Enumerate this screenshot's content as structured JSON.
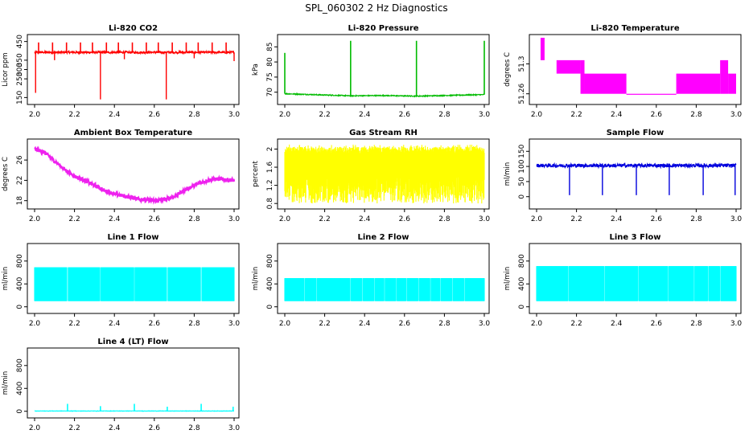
{
  "figure_title": "SPL_060302  2 Hz Diagnostics",
  "chart_data": [
    {
      "id": "co2",
      "type": "line",
      "title": "Li-820 CO2",
      "ylabel": "Licor ppm",
      "color": "#ff0000",
      "xlim": [
        2.0,
        3.0
      ],
      "ylim": [
        130,
        470
      ],
      "yticks": [
        150,
        250,
        300,
        350,
        450
      ],
      "x_ticks": [
        "2.0",
        "2.2",
        "2.4",
        "2.6",
        "2.8",
        "3.0"
      ],
      "series": [
        {
          "name": "CO2",
          "baseline": [
            [
              2.0,
              392
            ],
            [
              3.0,
              392
            ]
          ],
          "noise": 6,
          "spikes_up": [
            [
              2.02,
              445
            ],
            [
              2.09,
              445
            ],
            [
              2.16,
              445
            ],
            [
              2.23,
              445
            ],
            [
              2.29,
              445
            ],
            [
              2.36,
              445
            ],
            [
              2.42,
              445
            ],
            [
              2.49,
              445
            ],
            [
              2.56,
              445
            ],
            [
              2.62,
              445
            ],
            [
              2.69,
              445
            ],
            [
              2.76,
              445
            ],
            [
              2.82,
              445
            ],
            [
              2.89,
              445
            ],
            [
              2.96,
              445
            ]
          ],
          "spikes_down": [
            [
              2.005,
              175
            ],
            [
              2.33,
              140
            ],
            [
              2.66,
              140
            ],
            [
              3.0,
              345
            ],
            [
              2.1,
              350
            ],
            [
              2.45,
              355
            ],
            [
              2.8,
              360
            ]
          ]
        }
      ]
    },
    {
      "id": "pressure",
      "type": "line",
      "title": "Li-820 Pressure",
      "ylabel": "kPa",
      "color": "#00bb00",
      "xlim": [
        2.0,
        3.0
      ],
      "ylim": [
        67,
        88
      ],
      "yticks": [
        70,
        75,
        80,
        85
      ],
      "x_ticks": [
        "2.0",
        "2.2",
        "2.4",
        "2.6",
        "2.8",
        "3.0"
      ],
      "series": [
        {
          "name": "Pressure",
          "baseline": [
            [
              2.0,
              69.5
            ],
            [
              2.33,
              68.8
            ],
            [
              2.5,
              68.9
            ],
            [
              2.66,
              68.7
            ],
            [
              3.0,
              69.2
            ]
          ],
          "noise": 0.15,
          "spikes_up": [
            [
              2.0,
              83
            ],
            [
              2.33,
              87
            ],
            [
              2.66,
              87
            ],
            [
              3.0,
              87
            ]
          ],
          "spikes_down": []
        }
      ]
    },
    {
      "id": "licor_temp",
      "type": "step",
      "title": "Li-820 Temperature",
      "ylabel": "degrees C",
      "color": "#ff00ff",
      "xlim": [
        2.0,
        3.0
      ],
      "ylim": [
        51.25,
        51.335
      ],
      "yticks": [
        51.26,
        51.3
      ],
      "x_ticks": [
        "2.0",
        "2.2",
        "2.4",
        "2.6",
        "2.8",
        "3.0"
      ],
      "series": [
        {
          "name": "Temperature",
          "bands": [
            [
              2.02,
              2.04,
              51.305,
              51.335
            ],
            [
              2.1,
              2.22,
              51.287,
              51.305
            ],
            [
              2.22,
              2.24,
              51.26,
              51.305
            ],
            [
              2.24,
              2.45,
              51.26,
              51.287
            ],
            [
              2.45,
              2.7,
              51.26,
              51.26
            ],
            [
              2.7,
              2.92,
              51.26,
              51.287
            ],
            [
              2.92,
              2.96,
              51.26,
              51.305
            ],
            [
              2.96,
              3.0,
              51.26,
              51.287
            ]
          ]
        }
      ]
    },
    {
      "id": "ambient_temp",
      "type": "line",
      "title": "Ambient Box Temperature",
      "ylabel": "degrees C",
      "color": "#ee22ee",
      "xlim": [
        2.0,
        3.0
      ],
      "ylim": [
        17,
        29.5
      ],
      "yticks": [
        18,
        22,
        26
      ],
      "x_ticks": [
        "2.0",
        "2.2",
        "2.4",
        "2.6",
        "2.8",
        "3.0"
      ],
      "series": [
        {
          "name": "Ambient",
          "points": [
            [
              2.0,
              28.2
            ],
            [
              2.05,
              27.5
            ],
            [
              2.1,
              25.8
            ],
            [
              2.15,
              24.2
            ],
            [
              2.2,
              22.8
            ],
            [
              2.25,
              22.0
            ],
            [
              2.3,
              21.0
            ],
            [
              2.35,
              20.0
            ],
            [
              2.4,
              19.3
            ],
            [
              2.45,
              18.9
            ],
            [
              2.5,
              18.5
            ],
            [
              2.55,
              18.2
            ],
            [
              2.6,
              18.0
            ],
            [
              2.65,
              18.2
            ],
            [
              2.7,
              18.8
            ],
            [
              2.75,
              20.0
            ],
            [
              2.8,
              21.0
            ],
            [
              2.85,
              21.8
            ],
            [
              2.9,
              22.3
            ],
            [
              2.95,
              22.2
            ],
            [
              3.0,
              22.0
            ]
          ],
          "noise": 0.35
        }
      ]
    },
    {
      "id": "rh",
      "type": "band",
      "title": "Gas Stream RH",
      "ylabel": "percent",
      "color": "#ffff00",
      "xlim": [
        2.0,
        3.0
      ],
      "ylim": [
        0.75,
        2.15
      ],
      "yticks": [
        0.8,
        1.2,
        1.6,
        2.0
      ],
      "x_ticks": [
        "2.0",
        "2.2",
        "2.4",
        "2.6",
        "2.8",
        "3.0"
      ],
      "series": [
        {
          "name": "RH",
          "lower": 1.4,
          "upper": 2.05,
          "min": 0.8,
          "max": 2.1
        }
      ]
    },
    {
      "id": "sample_flow",
      "type": "line",
      "title": "Sample Flow",
      "ylabel": "ml/min",
      "color": "#0000dd",
      "xlim": [
        2.0,
        3.0
      ],
      "ylim": [
        -30,
        180
      ],
      "yticks": [
        0,
        50,
        100,
        150
      ],
      "x_ticks": [
        "2.0",
        "2.2",
        "2.4",
        "2.6",
        "2.8",
        "3.0"
      ],
      "series": [
        {
          "name": "Flow",
          "baseline": [
            [
              2.0,
              103
            ],
            [
              3.0,
              103
            ]
          ],
          "noise": 6,
          "spikes_down": [
            [
              2.165,
              5
            ],
            [
              2.33,
              5
            ],
            [
              2.5,
              5
            ],
            [
              2.665,
              5
            ],
            [
              2.835,
              5
            ],
            [
              2.995,
              5
            ]
          ],
          "spikes_up": []
        }
      ]
    },
    {
      "id": "line1",
      "type": "band",
      "title": "Line 1 Flow",
      "ylabel": "ml/min",
      "color": "#00ffff",
      "xlim": [
        2.0,
        3.0
      ],
      "ylim": [
        -60,
        1050
      ],
      "yticks": [
        0,
        400,
        800
      ],
      "x_ticks": [
        "2.0",
        "2.2",
        "2.4",
        "2.6",
        "2.8",
        "3.0"
      ],
      "series": [
        {
          "name": "Line 1",
          "lower": 100,
          "upper": 690,
          "gaps": [
            2.165,
            2.33,
            2.5,
            2.665,
            2.835
          ]
        }
      ]
    },
    {
      "id": "line2",
      "type": "band",
      "title": "Line 2 Flow",
      "ylabel": "ml/min",
      "color": "#00ffff",
      "xlim": [
        2.0,
        3.0
      ],
      "ylim": [
        -60,
        1050
      ],
      "yticks": [
        0,
        400,
        800
      ],
      "x_ticks": [
        "2.0",
        "2.2",
        "2.4",
        "2.6",
        "2.8",
        "3.0"
      ],
      "series": [
        {
          "name": "Line 2",
          "lower": 100,
          "upper": 500,
          "gaps": [
            2.1,
            2.16,
            2.33,
            2.39,
            2.45,
            2.5,
            2.56,
            2.61,
            2.67,
            2.73,
            2.78,
            2.84,
            2.9
          ]
        }
      ]
    },
    {
      "id": "line3",
      "type": "band",
      "title": "Line 3 Flow",
      "ylabel": "ml/min",
      "color": "#00ffff",
      "xlim": [
        2.0,
        3.0
      ],
      "ylim": [
        -60,
        1050
      ],
      "yticks": [
        0,
        400,
        800
      ],
      "x_ticks": [
        "2.0",
        "2.2",
        "2.4",
        "2.6",
        "2.8",
        "3.0"
      ],
      "series": [
        {
          "name": "Line 3",
          "lower": 100,
          "upper": 710,
          "gaps": [
            2.16,
            2.34,
            2.51,
            2.66,
            2.79,
            2.86,
            2.92
          ]
        }
      ]
    },
    {
      "id": "line4",
      "type": "line",
      "title": "Line 4 (LT) Flow",
      "ylabel": "ml/min",
      "color": "#00ffff",
      "xlim": [
        2.0,
        3.0
      ],
      "ylim": [
        -60,
        1050
      ],
      "yticks": [
        0,
        400,
        800
      ],
      "x_ticks": [
        "2.0",
        "2.2",
        "2.4",
        "2.6",
        "2.8",
        "3.0"
      ],
      "series": [
        {
          "name": "Line 4",
          "baseline": [
            [
              2.0,
              5
            ],
            [
              3.0,
              5
            ]
          ],
          "noise": 3,
          "spikes_up": [
            [
              2.165,
              130
            ],
            [
              2.33,
              90
            ],
            [
              2.5,
              130
            ],
            [
              2.665,
              80
            ],
            [
              2.835,
              130
            ],
            [
              2.995,
              80
            ]
          ],
          "spikes_down": []
        }
      ]
    }
  ]
}
